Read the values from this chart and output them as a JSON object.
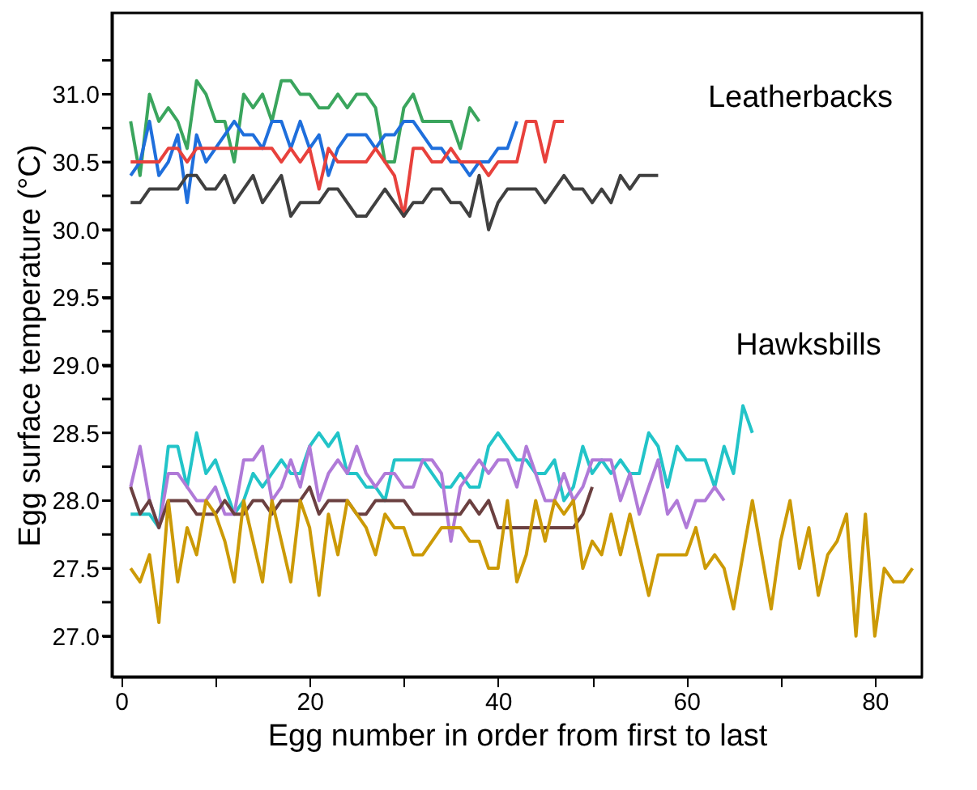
{
  "chart_data": {
    "type": "line",
    "xlabel": "Egg number in order from first to last",
    "ylabel": "Egg surface temperature (°C)",
    "xlim": [
      -1,
      85
    ],
    "ylim": [
      26.7,
      31.6
    ],
    "xticks": [
      0,
      {
        "value": 10,
        "label": null
      },
      20,
      {
        "value": 30,
        "label": null
      },
      40,
      {
        "value": 50,
        "label": null
      },
      60,
      {
        "value": 70,
        "label": null
      },
      80
    ],
    "yticks": [
      {
        "value": 27.0,
        "label": "27.0"
      },
      {
        "value": 27.25,
        "label": null
      },
      27.5,
      {
        "value": 27.75,
        "label": null
      },
      {
        "value": 28.0,
        "label": "28.0"
      },
      {
        "value": 28.25,
        "label": null
      },
      28.5,
      {
        "value": 28.75,
        "label": null
      },
      {
        "value": 29.0,
        "label": "29.0"
      },
      {
        "value": 29.25,
        "label": null
      },
      29.5,
      {
        "value": 29.75,
        "label": null
      },
      {
        "value": 30.0,
        "label": "30.0"
      },
      {
        "value": 30.25,
        "label": null
      },
      30.5,
      {
        "value": 30.75,
        "label": null
      },
      {
        "value": 31.0,
        "label": "31.0"
      },
      {
        "value": 31.25,
        "label": null
      }
    ],
    "grid": false,
    "legend": false,
    "marker": "none",
    "line_style": "solid",
    "annotations": [
      "Leatherbacks",
      "Hawksbills"
    ],
    "series": [
      {
        "color": "#3aa55d",
        "x": [
          1,
          2,
          3,
          4,
          5,
          6,
          7,
          8,
          9,
          10,
          11,
          12,
          13,
          14,
          15,
          16,
          17,
          18,
          19,
          20,
          21,
          22,
          23,
          24,
          25,
          26,
          27,
          28,
          29,
          30,
          31,
          32,
          33,
          34,
          35,
          36,
          37,
          38
        ],
        "values": [
          30.8,
          30.4,
          31.0,
          30.8,
          30.9,
          30.8,
          30.6,
          31.1,
          31.0,
          30.8,
          30.8,
          30.5,
          31.0,
          30.9,
          31.0,
          30.8,
          31.1,
          31.1,
          31.0,
          31.0,
          30.9,
          30.9,
          31.0,
          30.9,
          31.0,
          31.0,
          30.9,
          30.5,
          30.5,
          30.9,
          31.0,
          30.8,
          30.8,
          30.8,
          30.8,
          30.6,
          30.9,
          30.8
        ]
      },
      {
        "color": "#1f6fdc",
        "x": [
          1,
          2,
          3,
          4,
          5,
          6,
          7,
          8,
          9,
          10,
          11,
          12,
          13,
          14,
          15,
          16,
          17,
          18,
          19,
          20,
          21,
          22,
          23,
          24,
          25,
          26,
          27,
          28,
          29,
          30,
          31,
          32,
          33,
          34,
          35,
          36,
          37,
          38,
          39,
          40,
          41,
          42
        ],
        "values": [
          30.4,
          30.5,
          30.8,
          30.4,
          30.5,
          30.7,
          30.2,
          30.7,
          30.5,
          30.6,
          30.7,
          30.8,
          30.7,
          30.7,
          30.6,
          30.8,
          30.8,
          30.6,
          30.8,
          30.6,
          30.7,
          30.4,
          30.6,
          30.7,
          30.7,
          30.7,
          30.6,
          30.7,
          30.7,
          30.8,
          30.8,
          30.7,
          30.6,
          30.6,
          30.5,
          30.5,
          30.4,
          30.5,
          30.5,
          30.6,
          30.6,
          30.8
        ]
      },
      {
        "color": "#e8413c",
        "x": [
          1,
          2,
          3,
          4,
          5,
          6,
          7,
          8,
          9,
          10,
          11,
          12,
          13,
          14,
          15,
          16,
          17,
          18,
          19,
          20,
          21,
          22,
          23,
          24,
          25,
          26,
          27,
          28,
          29,
          30,
          31,
          32,
          33,
          34,
          35,
          36,
          37,
          38,
          39,
          40,
          41,
          42,
          43,
          44,
          45,
          46,
          47
        ],
        "values": [
          30.5,
          30.5,
          30.5,
          30.5,
          30.6,
          30.6,
          30.5,
          30.6,
          30.6,
          30.6,
          30.6,
          30.6,
          30.6,
          30.6,
          30.6,
          30.6,
          30.5,
          30.6,
          30.5,
          30.6,
          30.3,
          30.6,
          30.5,
          30.5,
          30.5,
          30.5,
          30.6,
          30.5,
          30.4,
          30.1,
          30.6,
          30.6,
          30.5,
          30.5,
          30.6,
          30.5,
          30.5,
          30.5,
          30.4,
          30.5,
          30.5,
          30.5,
          30.8,
          30.8,
          30.5,
          30.8,
          30.8
        ]
      },
      {
        "color": "#404040",
        "x": [
          1,
          2,
          3,
          4,
          5,
          6,
          7,
          8,
          9,
          10,
          11,
          12,
          13,
          14,
          15,
          16,
          17,
          18,
          19,
          20,
          21,
          22,
          23,
          24,
          25,
          26,
          27,
          28,
          29,
          30,
          31,
          32,
          33,
          34,
          35,
          36,
          37,
          38,
          39,
          40,
          41,
          42,
          43,
          44,
          45,
          46,
          47,
          48,
          49,
          50,
          51,
          52,
          53,
          54,
          55,
          56,
          57
        ],
        "values": [
          30.2,
          30.2,
          30.3,
          30.3,
          30.3,
          30.3,
          30.4,
          30.4,
          30.3,
          30.3,
          30.4,
          30.2,
          30.3,
          30.4,
          30.2,
          30.3,
          30.4,
          30.1,
          30.2,
          30.2,
          30.2,
          30.3,
          30.3,
          30.2,
          30.1,
          30.1,
          30.2,
          30.3,
          30.2,
          30.1,
          30.2,
          30.2,
          30.3,
          30.3,
          30.2,
          30.2,
          30.1,
          30.4,
          30.0,
          30.2,
          30.3,
          30.3,
          30.3,
          30.3,
          30.2,
          30.3,
          30.4,
          30.3,
          30.3,
          30.2,
          30.3,
          30.2,
          30.4,
          30.3,
          30.4,
          30.4,
          30.4
        ]
      },
      {
        "color": "#22c4c8",
        "x": [
          1,
          2,
          3,
          4,
          5,
          6,
          7,
          8,
          9,
          10,
          11,
          12,
          13,
          14,
          15,
          16,
          17,
          18,
          19,
          20,
          21,
          22,
          23,
          24,
          25,
          26,
          27,
          28,
          29,
          30,
          31,
          32,
          33,
          34,
          35,
          36,
          37,
          38,
          39,
          40,
          41,
          42,
          43,
          44,
          45,
          46,
          47,
          48,
          49,
          50,
          51,
          52,
          53,
          54,
          55,
          56,
          57,
          58,
          59,
          60,
          61,
          62,
          63,
          64,
          65,
          66,
          67
        ],
        "values": [
          27.9,
          27.9,
          27.9,
          27.8,
          28.4,
          28.4,
          28.1,
          28.5,
          28.2,
          28.3,
          28.1,
          27.9,
          28.0,
          28.2,
          28.1,
          28.2,
          28.3,
          28.2,
          28.2,
          28.4,
          28.5,
          28.4,
          28.5,
          28.2,
          28.2,
          28.1,
          28.1,
          28.0,
          28.3,
          28.3,
          28.3,
          28.3,
          28.2,
          28.1,
          28.1,
          28.2,
          28.1,
          28.1,
          28.4,
          28.5,
          28.4,
          28.3,
          28.3,
          28.2,
          28.2,
          28.3,
          28.0,
          28.1,
          28.4,
          28.2,
          28.3,
          28.2,
          28.3,
          28.2,
          28.2,
          28.5,
          28.4,
          28.1,
          28.4,
          28.3,
          28.3,
          28.3,
          28.1,
          28.4,
          28.2,
          28.7,
          28.5
        ]
      },
      {
        "color": "#b07ad8",
        "x": [
          1,
          2,
          3,
          4,
          5,
          6,
          7,
          8,
          9,
          10,
          11,
          12,
          13,
          14,
          15,
          16,
          17,
          18,
          19,
          20,
          21,
          22,
          23,
          24,
          25,
          26,
          27,
          28,
          29,
          30,
          31,
          32,
          33,
          34,
          35,
          36,
          37,
          38,
          39,
          40,
          41,
          42,
          43,
          44,
          45,
          46,
          47,
          48,
          49,
          50,
          51,
          52,
          53,
          54,
          55,
          56,
          57,
          58,
          59,
          60,
          61,
          62,
          63,
          64
        ],
        "values": [
          28.1,
          28.4,
          28.0,
          27.8,
          28.2,
          28.2,
          28.1,
          28.0,
          28.0,
          28.1,
          27.9,
          27.9,
          28.3,
          28.3,
          28.4,
          28.0,
          28.1,
          28.3,
          28.1,
          28.4,
          28.0,
          28.2,
          28.3,
          28.2,
          28.4,
          28.2,
          28.1,
          28.2,
          28.2,
          28.1,
          28.1,
          28.3,
          28.3,
          28.2,
          27.7,
          28.1,
          28.2,
          28.3,
          28.2,
          28.3,
          28.3,
          28.1,
          28.4,
          28.2,
          28.0,
          28.0,
          28.2,
          28.0,
          28.1,
          28.3,
          28.3,
          28.3,
          28.0,
          28.2,
          27.9,
          28.1,
          28.3,
          27.9,
          28.0,
          27.8,
          28.0,
          28.0,
          28.1,
          28.0
        ]
      },
      {
        "color": "#6b4040",
        "x": [
          1,
          2,
          3,
          4,
          5,
          6,
          7,
          8,
          9,
          10,
          11,
          12,
          13,
          14,
          15,
          16,
          17,
          18,
          19,
          20,
          21,
          22,
          23,
          24,
          25,
          26,
          27,
          28,
          29,
          30,
          31,
          32,
          33,
          34,
          35,
          36,
          37,
          38,
          39,
          40,
          41,
          42,
          43,
          44,
          45,
          46,
          47,
          48,
          49,
          50
        ],
        "values": [
          28.1,
          27.9,
          28.0,
          27.8,
          28.0,
          28.0,
          28.0,
          27.9,
          27.9,
          27.9,
          28.0,
          27.9,
          27.9,
          28.0,
          28.0,
          27.9,
          28.0,
          28.0,
          28.0,
          28.1,
          27.9,
          28.0,
          28.0,
          28.0,
          27.9,
          27.9,
          28.0,
          28.0,
          28.0,
          28.0,
          27.9,
          27.9,
          27.9,
          27.9,
          27.9,
          27.9,
          28.0,
          27.9,
          28.0,
          27.8,
          27.8,
          27.8,
          27.8,
          27.8,
          27.8,
          27.8,
          27.8,
          27.8,
          27.9,
          28.1
        ]
      },
      {
        "color": "#cc9a06",
        "x": [
          1,
          2,
          3,
          4,
          5,
          6,
          7,
          8,
          9,
          10,
          11,
          12,
          13,
          14,
          15,
          16,
          17,
          18,
          19,
          20,
          21,
          22,
          23,
          24,
          25,
          26,
          27,
          28,
          29,
          30,
          31,
          32,
          33,
          34,
          35,
          36,
          37,
          38,
          39,
          40,
          41,
          42,
          43,
          44,
          45,
          46,
          47,
          48,
          49,
          50,
          51,
          52,
          53,
          54,
          55,
          56,
          57,
          58,
          59,
          60,
          61,
          62,
          63,
          64,
          65,
          66,
          67,
          68,
          69,
          70,
          71,
          72,
          73,
          74,
          75,
          76,
          77,
          78,
          79,
          80,
          81,
          82,
          83,
          84
        ],
        "values": [
          27.5,
          27.4,
          27.6,
          27.1,
          28.0,
          27.4,
          27.8,
          27.6,
          28.0,
          27.9,
          27.7,
          27.4,
          28.0,
          27.7,
          27.4,
          28.0,
          27.7,
          27.4,
          28.0,
          27.8,
          27.3,
          27.9,
          27.6,
          28.0,
          27.9,
          27.8,
          27.6,
          27.9,
          27.8,
          27.8,
          27.6,
          27.6,
          27.7,
          27.8,
          27.8,
          27.8,
          27.7,
          27.7,
          27.5,
          27.5,
          28.0,
          27.4,
          27.6,
          28.0,
          27.7,
          28.0,
          27.9,
          28.0,
          27.5,
          27.7,
          27.6,
          27.9,
          27.6,
          27.9,
          27.6,
          27.3,
          27.6,
          27.6,
          27.6,
          27.6,
          27.8,
          27.5,
          27.6,
          27.5,
          27.2,
          27.6,
          28.0,
          27.6,
          27.2,
          27.7,
          28.0,
          27.5,
          27.8,
          27.3,
          27.6,
          27.7,
          27.9,
          27.0,
          27.9,
          27.0,
          27.5,
          27.4,
          27.4,
          27.5
        ]
      }
    ]
  }
}
